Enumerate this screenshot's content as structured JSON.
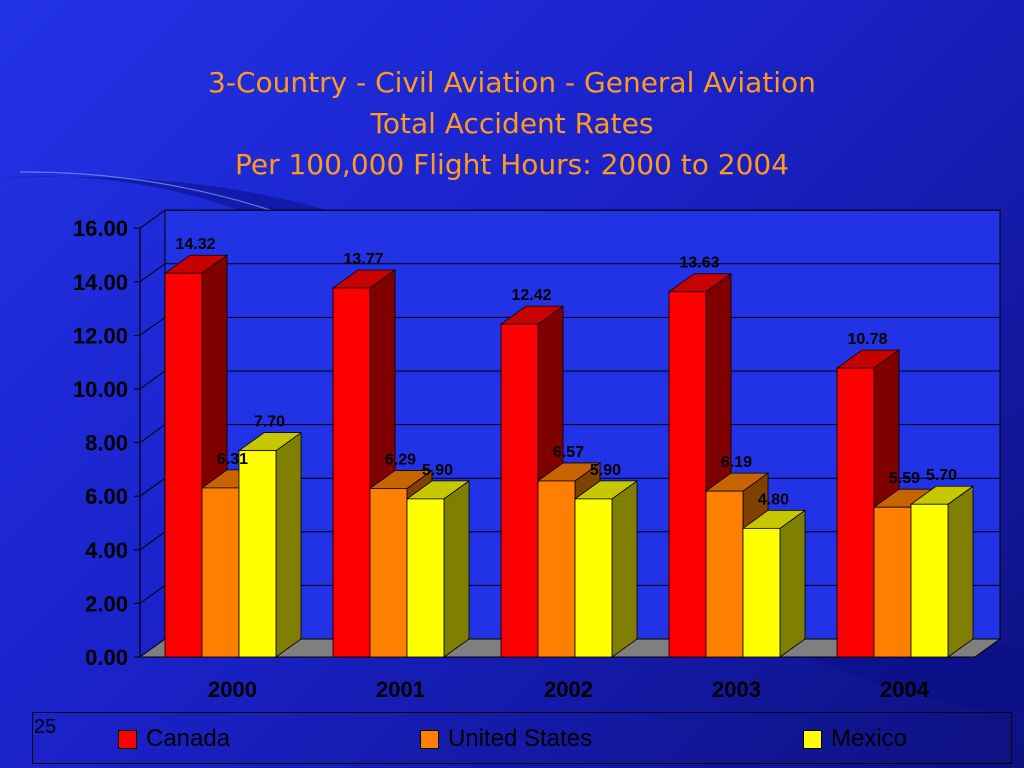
{
  "title_lines": [
    "3-Country - Civil Aviation - General Aviation",
    "Total Accident Rates",
    "Per 100,000 Flight Hours: 2000 to 2004"
  ],
  "slide_number": "25",
  "colors": {
    "canada": "#ff0000",
    "united_states": "#ff7f00",
    "mexico": "#ffff00"
  },
  "chart_data": {
    "type": "bar",
    "title": "3-Country - Civil Aviation - General Aviation Total Accident Rates Per 100,000 Flight Hours: 2000 to 2004",
    "categories": [
      "2000",
      "2001",
      "2002",
      "2003",
      "2004"
    ],
    "series": [
      {
        "name": "Canada",
        "values": [
          14.32,
          13.77,
          12.42,
          13.63,
          10.78
        ],
        "labels": [
          "14.32",
          "13.77",
          "12.42",
          "13.63",
          "10.78"
        ]
      },
      {
        "name": "United States",
        "values": [
          6.31,
          6.29,
          6.57,
          6.19,
          5.59
        ],
        "labels": [
          "6.31",
          "6.29",
          "6.57",
          "6.19",
          "5.59"
        ]
      },
      {
        "name": "Mexico",
        "values": [
          7.7,
          5.9,
          5.9,
          4.8,
          5.7
        ],
        "labels": [
          "7.70",
          "5.90",
          "5.90",
          "4.80",
          "5.70"
        ]
      }
    ],
    "yticks": [
      "0.00",
      "2.00",
      "4.00",
      "6.00",
      "8.00",
      "10.00",
      "12.00",
      "14.00",
      "16.00"
    ],
    "ylim": [
      0,
      16
    ],
    "xlabel": "",
    "ylabel": "",
    "grid": true,
    "three_d": true,
    "legend_position": "bottom"
  }
}
